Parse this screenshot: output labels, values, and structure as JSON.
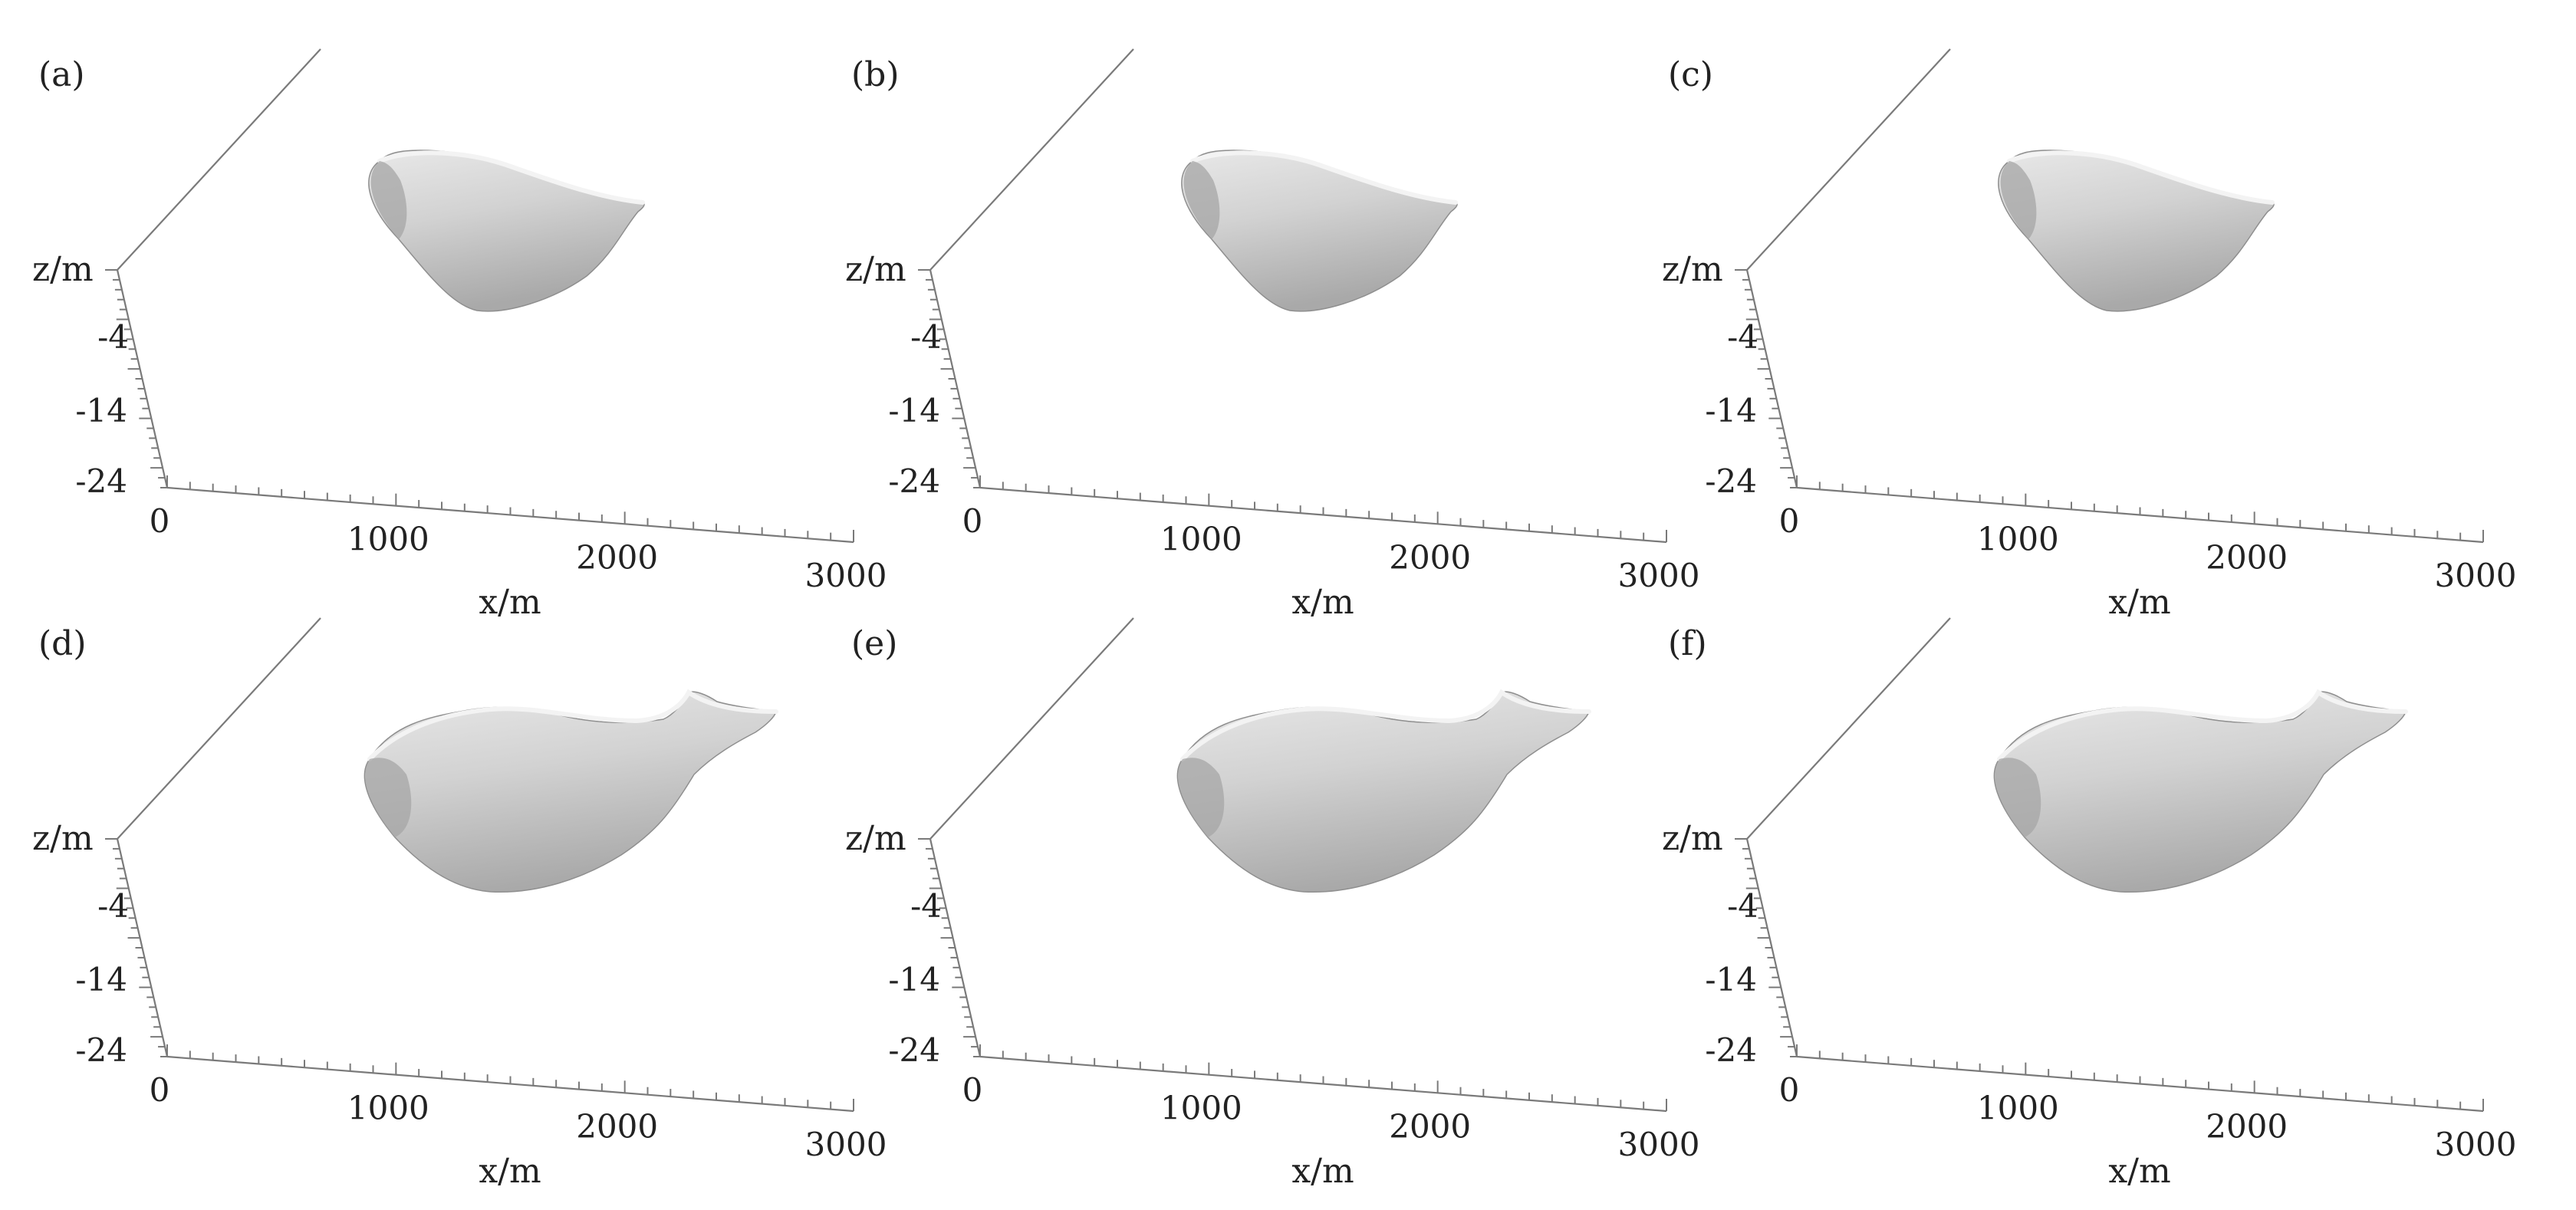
{
  "chart_data": {
    "type": "3d-surface",
    "panels": [
      {
        "label": "(a)",
        "shape": "compact"
      },
      {
        "label": "(b)",
        "shape": "compact"
      },
      {
        "label": "(c)",
        "shape": "compact"
      },
      {
        "label": "(d)",
        "shape": "extended"
      },
      {
        "label": "(e)",
        "shape": "extended"
      },
      {
        "label": "(f)",
        "shape": "extended"
      }
    ],
    "x_axis": {
      "label": "x/m",
      "ticks": [
        0,
        1000,
        2000,
        3000
      ]
    },
    "z_axis": {
      "label": "z/m",
      "ticks": [
        -4,
        -14,
        -24
      ]
    },
    "colors": {
      "axis": "#7a7a7a",
      "surface": "#cfcfcf",
      "surface_shadow": "#9e9e9e",
      "surface_highlight": "#ececec"
    }
  }
}
